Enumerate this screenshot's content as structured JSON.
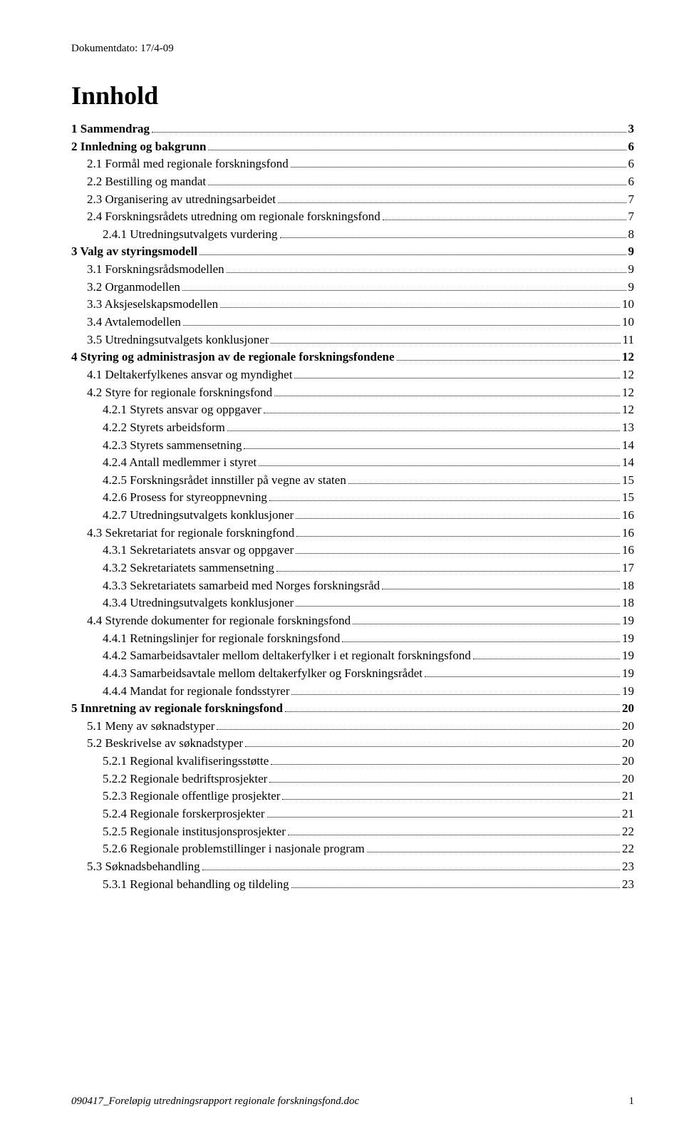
{
  "header": {
    "doc_date": "Dokumentdato: 17/4-09",
    "title": "Innhold"
  },
  "toc": [
    {
      "level": 0,
      "text": "1  Sammendrag",
      "page": "3"
    },
    {
      "level": 0,
      "text": "2  Innledning og bakgrunn",
      "page": "6"
    },
    {
      "level": 1,
      "text": "2.1  Formål med regionale forskningsfond",
      "page": "6"
    },
    {
      "level": 1,
      "text": "2.2  Bestilling og mandat",
      "page": "6"
    },
    {
      "level": 1,
      "text": "2.3  Organisering av utredningsarbeidet",
      "page": "7"
    },
    {
      "level": 1,
      "text": "2.4  Forskningsrådets utredning om regionale forskningsfond",
      "page": "7"
    },
    {
      "level": 2,
      "text": "2.4.1    Utredningsutvalgets vurdering",
      "page": "8"
    },
    {
      "level": 0,
      "text": "3  Valg av styringsmodell",
      "page": "9"
    },
    {
      "level": 1,
      "text": "3.1  Forskningsrådsmodellen",
      "page": "9"
    },
    {
      "level": 1,
      "text": "3.2  Organmodellen",
      "page": "9"
    },
    {
      "level": 1,
      "text": "3.3  Aksjeselskapsmodellen",
      "page": "10"
    },
    {
      "level": 1,
      "text": "3.4  Avtalemodellen",
      "page": "10"
    },
    {
      "level": 1,
      "text": "3.5  Utredningsutvalgets konklusjoner",
      "page": "11"
    },
    {
      "level": 0,
      "text": "4  Styring og administrasjon av de regionale forskningsfondene",
      "page": "12"
    },
    {
      "level": 1,
      "text": "4.1  Deltakerfylkenes ansvar og myndighet",
      "page": "12"
    },
    {
      "level": 1,
      "text": "4.2  Styre for regionale forskningsfond",
      "page": "12"
    },
    {
      "level": 2,
      "text": "4.2.1    Styrets ansvar og oppgaver",
      "page": "12"
    },
    {
      "level": 2,
      "text": "4.2.2    Styrets arbeidsform",
      "page": "13"
    },
    {
      "level": 2,
      "text": "4.2.3    Styrets sammensetning",
      "page": "14"
    },
    {
      "level": 2,
      "text": "4.2.4    Antall medlemmer i styret",
      "page": "14"
    },
    {
      "level": 2,
      "text": "4.2.5    Forskningsrådet innstiller på vegne av staten",
      "page": "15"
    },
    {
      "level": 2,
      "text": "4.2.6    Prosess for styreoppnevning",
      "page": "15"
    },
    {
      "level": 2,
      "text": "4.2.7    Utredningsutvalgets konklusjoner",
      "page": "16"
    },
    {
      "level": 1,
      "text": "4.3  Sekretariat for regionale forskningfond",
      "page": "16"
    },
    {
      "level": 2,
      "text": "4.3.1    Sekretariatets ansvar og oppgaver",
      "page": "16"
    },
    {
      "level": 2,
      "text": "4.3.2    Sekretariatets sammensetning",
      "page": "17"
    },
    {
      "level": 2,
      "text": "4.3.3    Sekretariatets samarbeid med Norges forskningsråd",
      "page": "18"
    },
    {
      "level": 2,
      "text": "4.3.4    Utredningsutvalgets konklusjoner",
      "page": "18"
    },
    {
      "level": 1,
      "text": "4.4  Styrende dokumenter for regionale forskningsfond",
      "page": "19"
    },
    {
      "level": 2,
      "text": "4.4.1    Retningslinjer for regionale forskningsfond",
      "page": "19"
    },
    {
      "level": 2,
      "text": "4.4.2    Samarbeidsavtaler mellom deltakerfylker i et regionalt forskningsfond",
      "page": "19"
    },
    {
      "level": 2,
      "text": "4.4.3    Samarbeidsavtale mellom deltakerfylker og Forskningsrådet",
      "page": "19"
    },
    {
      "level": 2,
      "text": "4.4.4    Mandat for regionale fondsstyrer",
      "page": "19"
    },
    {
      "level": 0,
      "text": "5  Innretning av regionale forskningsfond",
      "page": "20"
    },
    {
      "level": 1,
      "text": "5.1  Meny av søknadstyper",
      "page": "20"
    },
    {
      "level": 1,
      "text": "5.2  Beskrivelse av søknadstyper",
      "page": "20"
    },
    {
      "level": 2,
      "text": "5.2.1    Regional kvalifiseringsstøtte",
      "page": "20"
    },
    {
      "level": 2,
      "text": "5.2.2    Regionale bedriftsprosjekter",
      "page": "20"
    },
    {
      "level": 2,
      "text": "5.2.3    Regionale offentlige prosjekter",
      "page": "21"
    },
    {
      "level": 2,
      "text": "5.2.4    Regionale forskerprosjekter",
      "page": "21"
    },
    {
      "level": 2,
      "text": "5.2.5    Regionale institusjonsprosjekter",
      "page": "22"
    },
    {
      "level": 2,
      "text": "5.2.6    Regionale problemstillinger i nasjonale program",
      "page": "22"
    },
    {
      "level": 1,
      "text": "5.3  Søknadsbehandling",
      "page": "23"
    },
    {
      "level": 2,
      "text": "5.3.1    Regional behandling og tildeling",
      "page": "23"
    }
  ],
  "footer": {
    "filename": "090417_Foreløpig utredningsrapport regionale forskningsfond.doc",
    "page_number": "1"
  }
}
